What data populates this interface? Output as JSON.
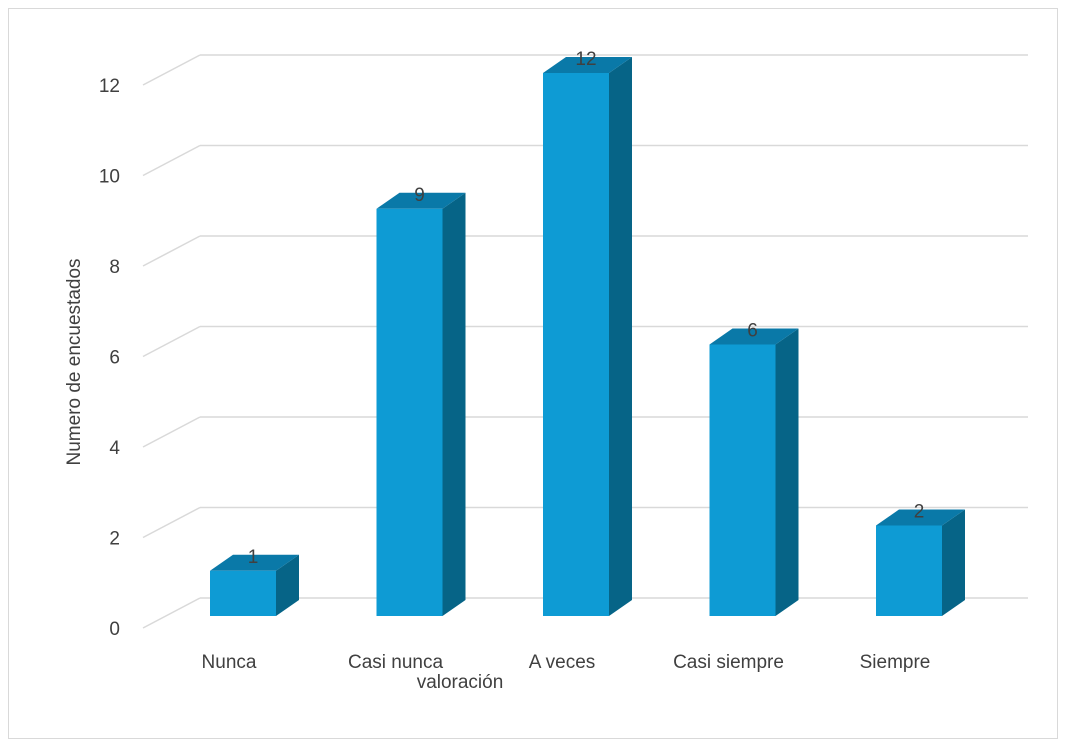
{
  "chart_data": {
    "type": "bar",
    "title": "",
    "xlabel": "valoración",
    "ylabel": "Numero de encuestados",
    "categories": [
      "Nunca",
      "Casi nunca",
      "A veces",
      "Casi siempre",
      "Siempre"
    ],
    "values": [
      1,
      9,
      12,
      6,
      2
    ],
    "data_labels": [
      "1",
      "9",
      "12",
      "6",
      "2"
    ],
    "ylim": [
      0,
      12
    ],
    "y_ticks": [
      "0",
      "2",
      "4",
      "6",
      "8",
      "10",
      "12"
    ],
    "grid": true,
    "style": "3d-column",
    "colors": {
      "front": "#0E9BD4",
      "side": "#066487",
      "top": "#0A79A8",
      "grid": "#d9d9d9"
    }
  }
}
